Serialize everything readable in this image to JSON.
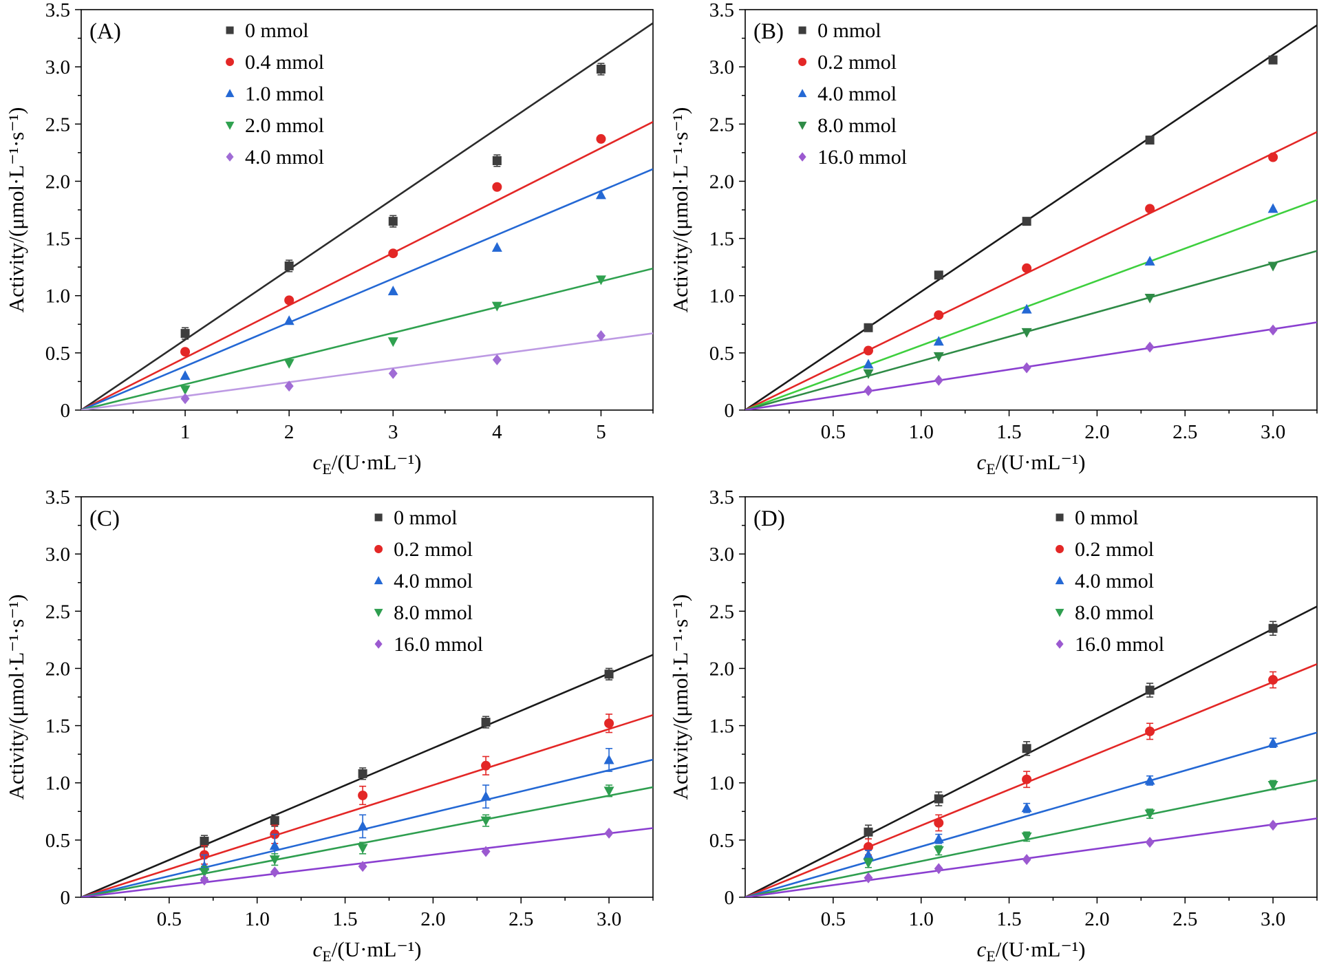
{
  "figure": {
    "background": "#ffffff",
    "axis_color": "#000000"
  },
  "chart_data": [
    {
      "id": "A",
      "type": "scatter",
      "panel_label": "(A)",
      "ylabel": "Activity/(μmol·L⁻¹·s⁻¹)",
      "xlabel_parts": [
        {
          "t": "c",
          "italic": true
        },
        {
          "t": "E",
          "sub": true
        },
        {
          "t": "/(U·mL⁻¹)"
        }
      ],
      "xlim": [
        0,
        5.5
      ],
      "ylim": [
        0,
        3.5
      ],
      "xticks": [
        {
          "v": 1,
          "label": "1"
        },
        {
          "v": 2,
          "label": "2"
        },
        {
          "v": 3,
          "label": "3"
        },
        {
          "v": 4,
          "label": "4"
        },
        {
          "v": 5,
          "label": "5"
        }
      ],
      "yticks": [
        {
          "v": 0,
          "label": "0"
        },
        {
          "v": 0.5,
          "label": "0.5"
        },
        {
          "v": 1,
          "label": "1.0"
        },
        {
          "v": 1.5,
          "label": "1.5"
        },
        {
          "v": 2,
          "label": "2.0"
        },
        {
          "v": 2.5,
          "label": "2.5"
        },
        {
          "v": 3,
          "label": "3.0"
        },
        {
          "v": 3.5,
          "label": "3.5"
        }
      ],
      "legend_x_frac": 0.26,
      "series": [
        {
          "name": "0 mmol",
          "marker": "square",
          "marker_color": "#3d3d3d",
          "line_color": "#2b2b2b",
          "slope": 0.615,
          "x": [
            1,
            2,
            3,
            4,
            5
          ],
          "y": [
            0.67,
            1.26,
            1.65,
            2.18,
            2.98
          ],
          "yerr": 0.05
        },
        {
          "name": "0.4 mmol",
          "marker": "circle",
          "marker_color": "#e32726",
          "line_color": "#e32726",
          "slope": 0.458,
          "x": [
            1,
            2,
            3,
            4,
            5
          ],
          "y": [
            0.51,
            0.96,
            1.37,
            1.95,
            2.37
          ],
          "yerr": 0
        },
        {
          "name": "1.0 mmol",
          "marker": "triangle-up",
          "marker_color": "#2468d4",
          "line_color": "#2468d4",
          "slope": 0.383,
          "x": [
            1,
            2,
            3,
            4,
            5
          ],
          "y": [
            0.3,
            0.78,
            1.04,
            1.42,
            1.88
          ],
          "yerr": 0
        },
        {
          "name": "2.0 mmol",
          "marker": "triangle-down",
          "marker_color": "#2fa14f",
          "line_color": "#2fa14f",
          "slope": 0.225,
          "x": [
            1,
            2,
            3,
            4,
            5
          ],
          "y": [
            0.18,
            0.41,
            0.6,
            0.91,
            1.14
          ],
          "yerr": 0
        },
        {
          "name": "4.0 mmol",
          "marker": "diamond",
          "marker_color": "#a06cd5",
          "line_color": "#bd9ae3",
          "slope": 0.122,
          "x": [
            1,
            2,
            3,
            4,
            5
          ],
          "y": [
            0.1,
            0.21,
            0.32,
            0.44,
            0.65
          ],
          "yerr": 0
        }
      ]
    },
    {
      "id": "B",
      "type": "scatter",
      "panel_label": "(B)",
      "ylabel": "Activity/(μmol·L⁻¹·s⁻¹)",
      "xlabel_parts": [
        {
          "t": "c",
          "italic": true
        },
        {
          "t": "E",
          "sub": true
        },
        {
          "t": "/(U·mL⁻¹)"
        }
      ],
      "xlim": [
        0,
        3.25
      ],
      "ylim": [
        0,
        3.5
      ],
      "xticks": [
        {
          "v": 0.5,
          "label": "0.5"
        },
        {
          "v": 1,
          "label": "1.0"
        },
        {
          "v": 1.5,
          "label": "1.5"
        },
        {
          "v": 2,
          "label": "2.0"
        },
        {
          "v": 2.5,
          "label": "2.5"
        },
        {
          "v": 3,
          "label": "3.0"
        }
      ],
      "yticks": [
        {
          "v": 0,
          "label": "0"
        },
        {
          "v": 0.5,
          "label": "0.5"
        },
        {
          "v": 1,
          "label": "1.0"
        },
        {
          "v": 1.5,
          "label": "1.5"
        },
        {
          "v": 2,
          "label": "2.0"
        },
        {
          "v": 2.5,
          "label": "2.5"
        },
        {
          "v": 3,
          "label": "3.0"
        },
        {
          "v": 3.5,
          "label": "3.5"
        }
      ],
      "legend_x_frac": 0.1,
      "series": [
        {
          "name": "0 mmol",
          "marker": "square",
          "marker_color": "#3d3d3d",
          "line_color": "#1a1a1a",
          "slope": 1.035,
          "x": [
            0.7,
            1.1,
            1.6,
            2.3,
            3.0
          ],
          "y": [
            0.72,
            1.18,
            1.65,
            2.36,
            3.06
          ],
          "yerr": 0
        },
        {
          "name": "0.2 mmol",
          "marker": "circle",
          "marker_color": "#e32726",
          "line_color": "#e32726",
          "slope": 0.748,
          "x": [
            0.7,
            1.1,
            1.6,
            2.3,
            3.0
          ],
          "y": [
            0.52,
            0.83,
            1.24,
            1.76,
            2.21
          ],
          "yerr": 0
        },
        {
          "name": "4.0 mmol",
          "marker": "triangle-up",
          "marker_color": "#2468d4",
          "line_color": "#3ecf3e",
          "slope": 0.565,
          "x": [
            0.7,
            1.1,
            1.6,
            2.3,
            3.0
          ],
          "y": [
            0.4,
            0.6,
            0.88,
            1.3,
            1.76
          ],
          "yerr": 0
        },
        {
          "name": "8.0 mmol",
          "marker": "triangle-down",
          "marker_color": "#2e8b46",
          "line_color": "#2e8b46",
          "slope": 0.428,
          "x": [
            0.7,
            1.1,
            1.6,
            2.3,
            3.0
          ],
          "y": [
            0.32,
            0.47,
            0.68,
            0.98,
            1.26
          ],
          "yerr": 0
        },
        {
          "name": "16.0 mmol",
          "marker": "diamond",
          "marker_color": "#9b59d0",
          "line_color": "#8a3fd0",
          "slope": 0.236,
          "x": [
            0.7,
            1.1,
            1.6,
            2.3,
            3.0
          ],
          "y": [
            0.17,
            0.26,
            0.37,
            0.55,
            0.7
          ],
          "yerr": 0
        }
      ]
    },
    {
      "id": "C",
      "type": "scatter",
      "panel_label": "(C)",
      "ylabel": "Activity/(μmol·L⁻¹·s⁻¹)",
      "xlabel_parts": [
        {
          "t": "c",
          "italic": true
        },
        {
          "t": "E",
          "sub": true
        },
        {
          "t": "/(U·mL⁻¹)"
        }
      ],
      "xlim": [
        0,
        3.25
      ],
      "ylim": [
        0,
        3.5
      ],
      "xticks": [
        {
          "v": 0.5,
          "label": "0.5"
        },
        {
          "v": 1,
          "label": "1.0"
        },
        {
          "v": 1.5,
          "label": "1.5"
        },
        {
          "v": 2,
          "label": "2.0"
        },
        {
          "v": 2.5,
          "label": "2.5"
        },
        {
          "v": 3,
          "label": "3.0"
        }
      ],
      "yticks": [
        {
          "v": 0,
          "label": "0"
        },
        {
          "v": 0.5,
          "label": "0.5"
        },
        {
          "v": 1,
          "label": "1.0"
        },
        {
          "v": 1.5,
          "label": "1.5"
        },
        {
          "v": 2,
          "label": "2.0"
        },
        {
          "v": 2.5,
          "label": "2.5"
        },
        {
          "v": 3,
          "label": "3.0"
        },
        {
          "v": 3.5,
          "label": "3.5"
        }
      ],
      "legend_x_frac": 0.52,
      "series": [
        {
          "name": "0 mmol",
          "marker": "square",
          "marker_color": "#3d3d3d",
          "line_color": "#1a1a1a",
          "slope": 0.652,
          "x": [
            0.7,
            1.1,
            1.6,
            2.3,
            3.0
          ],
          "y": [
            0.49,
            0.67,
            1.08,
            1.53,
            1.95
          ],
          "yerr": 0.05
        },
        {
          "name": "0.2 mmol",
          "marker": "circle",
          "marker_color": "#e32726",
          "line_color": "#e32726",
          "slope": 0.49,
          "x": [
            0.7,
            1.1,
            1.6,
            2.3,
            3.0
          ],
          "y": [
            0.37,
            0.55,
            0.89,
            1.15,
            1.52
          ],
          "yerr": 0.08
        },
        {
          "name": "4.0 mmol",
          "marker": "triangle-up",
          "marker_color": "#2468d4",
          "line_color": "#2468d4",
          "slope": 0.37,
          "x": [
            0.7,
            1.1,
            1.6,
            2.3,
            3.0
          ],
          "y": [
            0.27,
            0.45,
            0.62,
            0.88,
            1.2
          ],
          "yerr": 0.1
        },
        {
          "name": "8.0 mmol",
          "marker": "triangle-down",
          "marker_color": "#2e9e4f",
          "line_color": "#2e9e4f",
          "slope": 0.296,
          "x": [
            0.7,
            1.1,
            1.6,
            2.3,
            3.0
          ],
          "y": [
            0.22,
            0.33,
            0.43,
            0.67,
            0.93
          ],
          "yerr": 0.05
        },
        {
          "name": "16.0 mmol",
          "marker": "diamond",
          "marker_color": "#9b59d0",
          "line_color": "#8a3fd0",
          "slope": 0.186,
          "x": [
            0.7,
            1.1,
            1.6,
            2.3,
            3.0
          ],
          "y": [
            0.15,
            0.22,
            0.27,
            0.4,
            0.56
          ],
          "yerr": 0
        }
      ]
    },
    {
      "id": "D",
      "type": "scatter",
      "panel_label": "(D)",
      "ylabel": "Activity/(μmol·L⁻¹·s⁻¹)",
      "xlabel_parts": [
        {
          "t": "c",
          "italic": true
        },
        {
          "t": "E",
          "sub": true
        },
        {
          "t": "/(U·mL⁻¹)"
        }
      ],
      "xlim": [
        0,
        3.25
      ],
      "ylim": [
        0,
        3.5
      ],
      "xticks": [
        {
          "v": 0.5,
          "label": "0.5"
        },
        {
          "v": 1,
          "label": "1.0"
        },
        {
          "v": 1.5,
          "label": "1.5"
        },
        {
          "v": 2,
          "label": "2.0"
        },
        {
          "v": 2.5,
          "label": "2.5"
        },
        {
          "v": 3,
          "label": "3.0"
        }
      ],
      "yticks": [
        {
          "v": 0,
          "label": "0"
        },
        {
          "v": 0.5,
          "label": "0.5"
        },
        {
          "v": 1,
          "label": "1.0"
        },
        {
          "v": 1.5,
          "label": "1.5"
        },
        {
          "v": 2,
          "label": "2.0"
        },
        {
          "v": 2.5,
          "label": "2.5"
        },
        {
          "v": 3,
          "label": "3.0"
        },
        {
          "v": 3.5,
          "label": "3.5"
        }
      ],
      "legend_x_frac": 0.55,
      "series": [
        {
          "name": "0 mmol",
          "marker": "square",
          "marker_color": "#3d3d3d",
          "line_color": "#1a1a1a",
          "slope": 0.782,
          "x": [
            0.7,
            1.1,
            1.6,
            2.3,
            3.0
          ],
          "y": [
            0.57,
            0.86,
            1.3,
            1.81,
            2.35
          ],
          "yerr": 0.06
        },
        {
          "name": "0.2 mmol",
          "marker": "circle",
          "marker_color": "#e32726",
          "line_color": "#e32726",
          "slope": 0.627,
          "x": [
            0.7,
            1.1,
            1.6,
            2.3,
            3.0
          ],
          "y": [
            0.44,
            0.65,
            1.03,
            1.45,
            1.9
          ],
          "yerr": 0.07
        },
        {
          "name": "4.0 mmol",
          "marker": "triangle-up",
          "marker_color": "#2468d4",
          "line_color": "#2468d4",
          "slope": 0.443,
          "x": [
            0.7,
            1.1,
            1.6,
            2.3,
            3.0
          ],
          "y": [
            0.37,
            0.51,
            0.78,
            1.02,
            1.35
          ],
          "yerr": 0.04
        },
        {
          "name": "8.0 mmol",
          "marker": "triangle-down",
          "marker_color": "#2e9e4f",
          "line_color": "#2e9e4f",
          "slope": 0.315,
          "x": [
            0.7,
            1.1,
            1.6,
            2.3,
            3.0
          ],
          "y": [
            0.3,
            0.41,
            0.53,
            0.73,
            0.98
          ],
          "yerr": 0.04
        },
        {
          "name": "16.0 mmol",
          "marker": "diamond",
          "marker_color": "#9b59d0",
          "line_color": "#8a3fd0",
          "slope": 0.212,
          "x": [
            0.7,
            1.1,
            1.6,
            2.3,
            3.0
          ],
          "y": [
            0.17,
            0.25,
            0.33,
            0.48,
            0.63
          ],
          "yerr": 0
        }
      ]
    }
  ]
}
